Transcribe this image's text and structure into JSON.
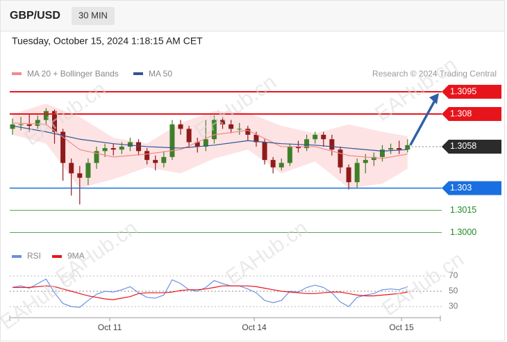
{
  "header": {
    "symbol": "GBP/USD",
    "interval": "30 MIN",
    "timestamp": "Tuesday, October 15, 2024 1:18:15 AM CET"
  },
  "watermark": "EAHub.cn",
  "chart_data": [
    {
      "type": "candlestick",
      "credit": "Research © 2024 Trading Central",
      "ylim": [
        1.2995,
        1.3096
      ],
      "up_color": "#3f7f2a",
      "down_color": "#8e1b1b",
      "candles": {
        "open": [
          1.307,
          1.3073,
          1.3073,
          1.3072,
          1.3076,
          1.3082,
          1.3068,
          1.3047,
          1.304,
          1.3037,
          1.3047,
          1.3055,
          1.3057,
          1.3056,
          1.3058,
          1.3061,
          1.3055,
          1.3049,
          1.3047,
          1.3051,
          1.3073,
          1.307,
          1.3061,
          1.3058,
          1.3063,
          1.3076,
          1.3073,
          1.307,
          1.307,
          1.3066,
          1.3061,
          1.3049,
          1.3044,
          1.3047,
          1.3058,
          1.3057,
          1.3063,
          1.3066,
          1.3063,
          1.3056,
          1.3044,
          1.3034,
          1.3047,
          1.3049,
          1.3051,
          1.3056,
          1.3057,
          1.3056
        ],
        "high": [
          1.3077,
          1.3078,
          1.308,
          1.3079,
          1.3084,
          1.3083,
          1.307,
          1.305,
          1.3045,
          1.305,
          1.3058,
          1.306,
          1.306,
          1.3061,
          1.3064,
          1.3063,
          1.3057,
          1.3052,
          1.3055,
          1.3076,
          1.3076,
          1.3072,
          1.3064,
          1.3076,
          1.3079,
          1.3078,
          1.3076,
          1.3074,
          1.3072,
          1.3068,
          1.3063,
          1.3051,
          1.305,
          1.306,
          1.3062,
          1.3066,
          1.3068,
          1.3068,
          1.3066,
          1.3058,
          1.3046,
          1.305,
          1.3053,
          1.3054,
          1.3059,
          1.306,
          1.3062,
          1.3063
        ],
        "low": [
          1.3066,
          1.3069,
          1.3068,
          1.307,
          1.3073,
          1.306,
          1.3035,
          1.3025,
          1.3019,
          1.3032,
          1.3043,
          1.3051,
          1.3052,
          1.3053,
          1.3055,
          1.3052,
          1.3046,
          1.3042,
          1.3044,
          1.3049,
          1.3066,
          1.3057,
          1.3054,
          1.3055,
          1.306,
          1.307,
          1.3067,
          1.3066,
          1.3062,
          1.3058,
          1.3046,
          1.304,
          1.3042,
          1.3045,
          1.3054,
          1.3055,
          1.306,
          1.3058,
          1.3052,
          1.304,
          1.3029,
          1.303,
          1.304,
          1.3045,
          1.3048,
          1.3053,
          1.3053,
          1.3054
        ],
        "close": [
          1.3073,
          1.3073,
          1.3072,
          1.3076,
          1.3082,
          1.3068,
          1.3047,
          1.304,
          1.3037,
          1.3047,
          1.3055,
          1.3057,
          1.3056,
          1.3058,
          1.3061,
          1.3055,
          1.3049,
          1.3047,
          1.3051,
          1.3073,
          1.307,
          1.3061,
          1.3058,
          1.3063,
          1.3076,
          1.3073,
          1.307,
          1.307,
          1.3066,
          1.3061,
          1.3049,
          1.3044,
          1.3047,
          1.3058,
          1.3057,
          1.3063,
          1.3066,
          1.3063,
          1.3056,
          1.3044,
          1.3034,
          1.3047,
          1.3049,
          1.3051,
          1.3056,
          1.3057,
          1.3056,
          1.3059
        ]
      },
      "series": [
        {
          "name": "MA 20 + Bollinger Bands",
          "color": "#f08a8a",
          "band_color": "#fde3e3",
          "x": [
            0,
            4,
            8,
            12,
            16,
            20,
            24,
            28,
            32,
            36,
            40,
            44,
            47
          ],
          "values": [
            1.3074,
            1.3073,
            1.3056,
            1.3051,
            1.3053,
            1.3056,
            1.3066,
            1.3069,
            1.3058,
            1.3058,
            1.3052,
            1.305,
            1.3053
          ],
          "upper": [
            1.308,
            1.3087,
            1.3078,
            1.3064,
            1.306,
            1.3074,
            1.3082,
            1.3081,
            1.3072,
            1.3067,
            1.3073,
            1.3068,
            1.3065
          ],
          "lower": [
            1.3066,
            1.306,
            1.303,
            1.3036,
            1.3044,
            1.304,
            1.305,
            1.3056,
            1.304,
            1.3048,
            1.303,
            1.3033,
            1.3043
          ]
        },
        {
          "name": "MA 50",
          "color": "#2f5597",
          "x": [
            0,
            4,
            8,
            12,
            16,
            20,
            24,
            28,
            32,
            36,
            40,
            44,
            47
          ],
          "values": [
            1.3072,
            1.3068,
            1.3063,
            1.306,
            1.3058,
            1.3057,
            1.3059,
            1.3062,
            1.306,
            1.3059,
            1.3057,
            1.3055,
            1.3056
          ]
        }
      ],
      "levels": [
        {
          "value": 1.3095,
          "color": "#e8141c",
          "tag": true
        },
        {
          "value": 1.308,
          "color": "#e8141c",
          "tag": true
        },
        {
          "value": 1.3058,
          "color": "#2b2b2b",
          "tag": true,
          "dotted": true
        },
        {
          "value": 1.303,
          "color": "#1a6fe0",
          "tag": true
        },
        {
          "value": 1.3015,
          "color": "#1f8a1f",
          "tag": false
        },
        {
          "value": 1.3,
          "label": "1.3000",
          "color": "#1f8a1f",
          "tag": false
        }
      ],
      "arrow_color": "#2f5fa8"
    },
    {
      "type": "line",
      "xlim": [
        -0.33,
        50.9
      ],
      "xticks": [
        {
          "value": 11.57,
          "label": "Oct 11"
        },
        {
          "value": 28.76,
          "label": "Oct 14"
        },
        {
          "value": 46.28,
          "label": "Oct 15"
        }
      ],
      "ylim": [
        20,
        80
      ],
      "yticks": [
        30,
        50,
        70
      ],
      "grid": true,
      "series": [
        {
          "name": "RSI",
          "color": "#6d8fe0",
          "values": [
            55,
            57,
            54,
            60,
            66,
            48,
            34,
            30,
            29,
            38,
            46,
            50,
            49,
            52,
            56,
            48,
            42,
            41,
            45,
            65,
            60,
            52,
            50,
            55,
            64,
            60,
            57,
            57,
            53,
            48,
            38,
            35,
            38,
            50,
            49,
            55,
            58,
            55,
            48,
            36,
            30,
            42,
            45,
            47,
            52,
            53,
            52,
            56
          ]
        },
        {
          "name": "9MA",
          "color": "#e8141c",
          "values": [
            55,
            55,
            55,
            56,
            57,
            56,
            53,
            50,
            47,
            44,
            42,
            40,
            39,
            41,
            43,
            47,
            48,
            48,
            48,
            49,
            51,
            52,
            52,
            53,
            55,
            57,
            57,
            57,
            57,
            56,
            54,
            52,
            50,
            49,
            48,
            47,
            47,
            48,
            49,
            49,
            47,
            45,
            44,
            44,
            45,
            46,
            47,
            49
          ]
        }
      ]
    }
  ]
}
